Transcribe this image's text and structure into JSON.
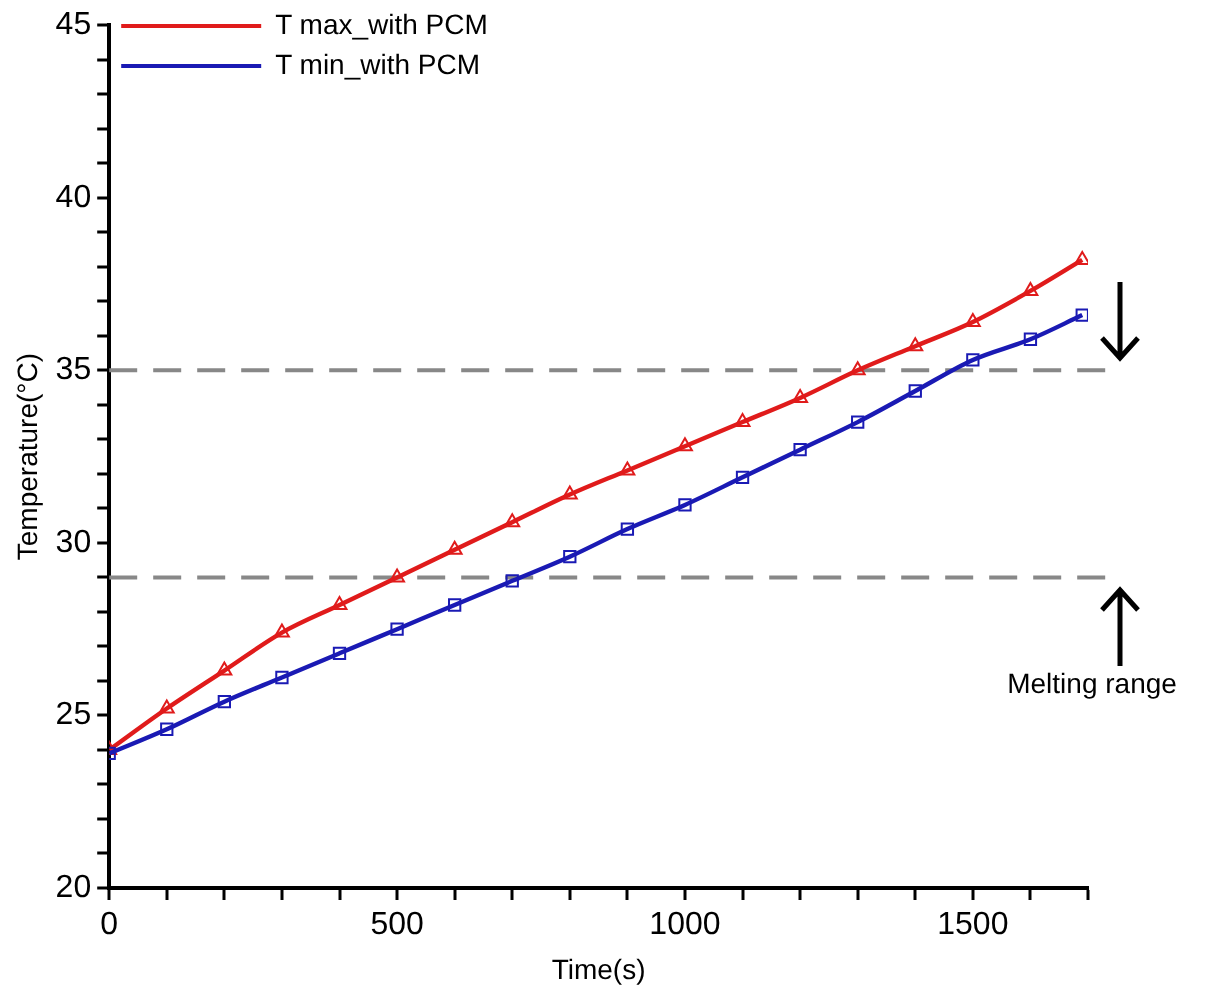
{
  "chart_data": {
    "type": "line",
    "xlabel": "Time(s)",
    "ylabel": "Temperature(°C)",
    "xlim": [
      0,
      1700
    ],
    "ylim": [
      20,
      45
    ],
    "xticks": [
      0,
      {
        "value": 100,
        "label": null
      },
      {
        "value": 200,
        "label": null
      },
      {
        "value": 300,
        "label": null
      },
      {
        "value": 400,
        "label": null
      },
      500,
      {
        "value": 600,
        "label": null
      },
      {
        "value": 700,
        "label": null
      },
      {
        "value": 800,
        "label": null
      },
      {
        "value": 900,
        "label": null
      },
      1000,
      {
        "value": 1100,
        "label": null
      },
      {
        "value": 1200,
        "label": null
      },
      {
        "value": 1300,
        "label": null
      },
      {
        "value": 1400,
        "label": null
      },
      1500,
      {
        "value": 1600,
        "label": null
      },
      {
        "value": 1700,
        "label": null
      }
    ],
    "yticks": [
      20,
      {
        "value": 21,
        "label": null
      },
      {
        "value": 22,
        "label": null
      },
      {
        "value": 23,
        "label": null
      },
      {
        "value": 24,
        "label": null
      },
      25,
      {
        "value": 26,
        "label": null
      },
      {
        "value": 27,
        "label": null
      },
      {
        "value": 28,
        "label": null
      },
      {
        "value": 29,
        "label": null
      },
      30,
      {
        "value": 31,
        "label": null
      },
      {
        "value": 32,
        "label": null
      },
      {
        "value": 33,
        "label": null
      },
      {
        "value": 34,
        "label": null
      },
      35,
      {
        "value": 36,
        "label": null
      },
      {
        "value": 37,
        "label": null
      },
      {
        "value": 38,
        "label": null
      },
      {
        "value": 39,
        "label": null
      },
      40,
      {
        "value": 41,
        "label": null
      },
      {
        "value": 42,
        "label": null
      },
      {
        "value": 43,
        "label": null
      },
      {
        "value": 44,
        "label": null
      },
      45
    ],
    "x": [
      0,
      100,
      200,
      300,
      400,
      500,
      600,
      700,
      800,
      900,
      1000,
      1100,
      1200,
      1300,
      1400,
      1500,
      1600,
      1690
    ],
    "series": [
      {
        "name": "T max_with PCM",
        "color": "#e01b1b",
        "marker": "triangle",
        "values": [
          24.0,
          25.2,
          26.3,
          27.4,
          28.2,
          29.0,
          29.8,
          30.6,
          31.4,
          32.1,
          32.8,
          33.5,
          34.2,
          35.0,
          35.7,
          36.4,
          37.3,
          38.2
        ]
      },
      {
        "name": "T min_with PCM",
        "color": "#1a1ab4",
        "marker": "square",
        "values": [
          23.9,
          24.6,
          25.4,
          26.1,
          26.8,
          27.5,
          28.2,
          28.9,
          29.6,
          30.4,
          31.1,
          31.9,
          32.7,
          33.5,
          34.4,
          35.3,
          35.9,
          36.6
        ]
      }
    ],
    "ref_lines": [
      {
        "axis": "y",
        "value": 35,
        "color": "#888888",
        "line_style": "dashed"
      },
      {
        "axis": "y",
        "value": 29,
        "color": "#888888",
        "line_style": "dashed"
      }
    ],
    "annotations": [
      "Melting range"
    ],
    "legend": "top left",
    "grid": false,
    "line_style": "solid"
  }
}
